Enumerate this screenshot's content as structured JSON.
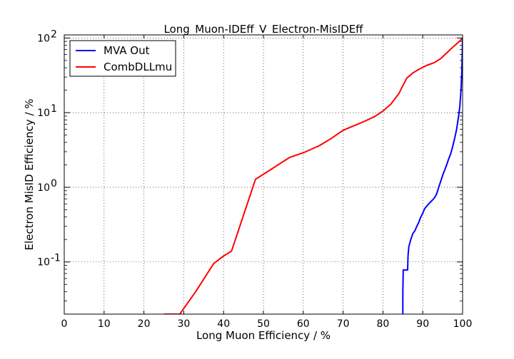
{
  "chart_data": {
    "type": "line",
    "title": "Long_Muon-IDEff_V_Electron-MisIDEff",
    "xlabel": "Long Muon Efficiency / %",
    "ylabel": "Electron MisID Efficiency / %",
    "xlim": [
      0,
      100
    ],
    "ylim": [
      0.02,
      110
    ],
    "yscale": "log",
    "grid": true,
    "legend_position": "top-left",
    "x_ticks": [
      0,
      10,
      20,
      30,
      40,
      50,
      60,
      70,
      80,
      90,
      100
    ],
    "y_ticks": [
      {
        "value": 0.1,
        "base": "10",
        "exp": "-1"
      },
      {
        "value": 1,
        "base": "10",
        "exp": "0"
      },
      {
        "value": 10,
        "base": "10",
        "exp": "1"
      },
      {
        "value": 100,
        "base": "10",
        "exp": "2"
      }
    ],
    "series": [
      {
        "name": "MVA Out",
        "color": "#0000ff",
        "points": [
          [
            85.0,
            0.02
          ],
          [
            85.0,
            0.04
          ],
          [
            85.1,
            0.078
          ],
          [
            86.2,
            0.078
          ],
          [
            86.3,
            0.12
          ],
          [
            86.5,
            0.16
          ],
          [
            87.0,
            0.2
          ],
          [
            87.5,
            0.24
          ],
          [
            88.0,
            0.26
          ],
          [
            88.5,
            0.3
          ],
          [
            89.0,
            0.34
          ],
          [
            89.5,
            0.4
          ],
          [
            90.0,
            0.45
          ],
          [
            90.5,
            0.52
          ],
          [
            91.0,
            0.56
          ],
          [
            91.5,
            0.6
          ],
          [
            92.0,
            0.64
          ],
          [
            92.5,
            0.68
          ],
          [
            93.0,
            0.73
          ],
          [
            93.5,
            0.82
          ],
          [
            94.0,
            1.0
          ],
          [
            94.5,
            1.2
          ],
          [
            95.0,
            1.45
          ],
          [
            95.5,
            1.7
          ],
          [
            96.0,
            2.0
          ],
          [
            96.5,
            2.4
          ],
          [
            97.0,
            2.8
          ],
          [
            97.5,
            3.5
          ],
          [
            98.0,
            4.5
          ],
          [
            98.5,
            6.0
          ],
          [
            99.0,
            9.0
          ],
          [
            99.3,
            12.0
          ],
          [
            99.6,
            20.0
          ],
          [
            99.8,
            35.0
          ],
          [
            99.9,
            60.0
          ],
          [
            100.0,
            100.0
          ]
        ]
      },
      {
        "name": "CombDLLmu",
        "color": "#ff0000",
        "points": [
          [
            25.0,
            0.02
          ],
          [
            29.0,
            0.02
          ],
          [
            33.0,
            0.04
          ],
          [
            37.5,
            0.095
          ],
          [
            40.0,
            0.12
          ],
          [
            42.0,
            0.14
          ],
          [
            48.0,
            1.28
          ],
          [
            52.0,
            1.75
          ],
          [
            56.5,
            2.5
          ],
          [
            60.0,
            2.9
          ],
          [
            64.0,
            3.6
          ],
          [
            67.0,
            4.5
          ],
          [
            70.0,
            5.8
          ],
          [
            75.0,
            7.5
          ],
          [
            78.0,
            8.9
          ],
          [
            80.0,
            10.5
          ],
          [
            82.0,
            13.0
          ],
          [
            84.0,
            18.0
          ],
          [
            85.0,
            23.0
          ],
          [
            86.0,
            29.0
          ],
          [
            87.5,
            34.0
          ],
          [
            89.0,
            38.0
          ],
          [
            91.0,
            43.0
          ],
          [
            93.0,
            47.0
          ],
          [
            94.5,
            53.0
          ],
          [
            96.0,
            63.0
          ],
          [
            97.5,
            75.0
          ],
          [
            99.0,
            88.0
          ],
          [
            100.0,
            100.0
          ]
        ]
      }
    ]
  }
}
